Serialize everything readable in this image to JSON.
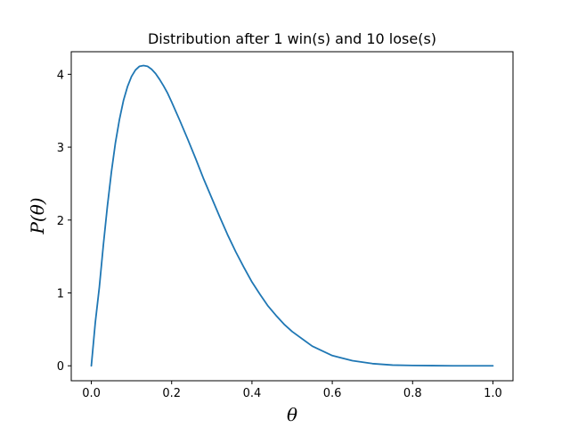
{
  "chart_data": {
    "type": "line",
    "title": "Distribution after 1 win(s) and 10 lose(s)",
    "xlabel": "θ",
    "ylabel": "P(θ)",
    "xlim": [
      -0.05,
      1.05
    ],
    "ylim": [
      -0.205,
      4.31
    ],
    "xticks": [
      "0.0",
      "0.2",
      "0.4",
      "0.6",
      "0.8",
      "1.0"
    ],
    "yticks": [
      "0",
      "1",
      "2",
      "3",
      "4"
    ],
    "grid": false,
    "legend": "none",
    "line_color": "#1f77b4",
    "series": [
      {
        "x": [
          0.0,
          0.01,
          0.02,
          0.03,
          0.04,
          0.05,
          0.06,
          0.07,
          0.08,
          0.09,
          0.1,
          0.11,
          0.12,
          0.13,
          0.14,
          0.15,
          0.16,
          0.17,
          0.18,
          0.19,
          0.2,
          0.22,
          0.24,
          0.26,
          0.28,
          0.3,
          0.32,
          0.34,
          0.36,
          0.38,
          0.4,
          0.42,
          0.44,
          0.46,
          0.48,
          0.5,
          0.55,
          0.6,
          0.65,
          0.7,
          0.75,
          0.8,
          0.85,
          0.9,
          0.95,
          1.0
        ],
        "y": [
          0.0,
          0.6,
          1.08,
          1.66,
          2.19,
          2.66,
          3.06,
          3.38,
          3.64,
          3.83,
          3.97,
          4.06,
          4.11,
          4.12,
          4.11,
          4.07,
          4.01,
          3.93,
          3.84,
          3.74,
          3.62,
          3.37,
          3.11,
          2.84,
          2.56,
          2.3,
          2.04,
          1.79,
          1.56,
          1.35,
          1.15,
          0.98,
          0.82,
          0.69,
          0.57,
          0.47,
          0.27,
          0.14,
          0.07,
          0.03,
          0.01,
          0.005,
          0.002,
          0.0,
          0.0,
          0.0
        ]
      }
    ]
  }
}
